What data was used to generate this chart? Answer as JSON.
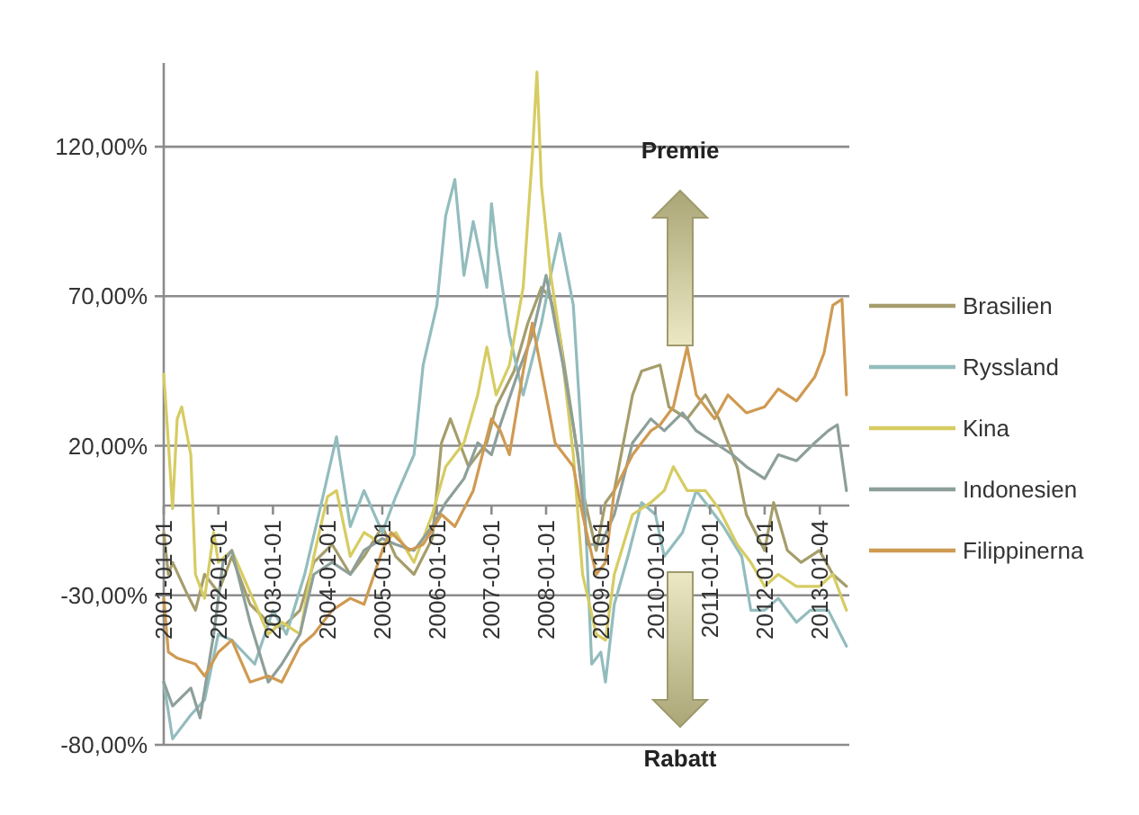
{
  "chart_data": {
    "type": "line",
    "annotations": [
      "Premie",
      "Rabatt"
    ],
    "xlim": [
      "2001-01-01",
      "2013-07-20"
    ],
    "xticks": [
      "2001-01-01",
      "2002-01-01",
      "2003-01-01",
      "2004-01-01",
      "2005-01-01",
      "2006-01-01",
      "2007-01-01",
      "2008-01-01",
      "2009-01-01",
      "2010-01-01",
      "2011-01-01",
      "2012-01-01",
      "2013-01-04"
    ],
    "ylim": [
      -80,
      148
    ],
    "yticks": [
      {
        "value": -80,
        "label": "-80,00%"
      },
      {
        "value": -30,
        "label": "-30,00%"
      },
      {
        "value": 20,
        "label": "20,00%"
      },
      {
        "value": 70,
        "label": "70,00%"
      },
      {
        "value": 120,
        "label": "120,00%"
      }
    ],
    "grid": "y",
    "legend": "right",
    "line_style": "solid",
    "series": [
      {
        "name": "Brasilien",
        "color": "#a59d6b",
        "x": [
          "2001-01",
          "2001-02",
          "2001-03",
          "2001-06",
          "2001-08",
          "2001-10",
          "2002-01",
          "2002-04",
          "2002-08",
          "2002-12",
          "2003-03",
          "2003-07",
          "2003-10",
          "2004-02",
          "2004-06",
          "2004-09",
          "2005-01",
          "2005-04",
          "2005-08",
          "2005-12",
          "2006-02",
          "2006-04",
          "2006-08",
          "2006-12",
          "2007-02",
          "2007-06",
          "2007-09",
          "2007-12",
          "2008-02",
          "2008-04",
          "2008-07",
          "2008-09",
          "2008-12",
          "2009-02",
          "2009-04",
          "2009-08",
          "2009-10",
          "2010-02",
          "2010-04",
          "2010-08",
          "2010-12",
          "2011-03",
          "2011-07",
          "2011-09",
          "2012-01",
          "2012-03",
          "2012-06",
          "2012-09",
          "2013-01",
          "2013-04",
          "2013-07"
        ],
        "values": [
          -9,
          -23,
          -19,
          -29,
          -35,
          -23,
          -29,
          -17,
          -33,
          -39,
          -41,
          -35,
          -19,
          -13,
          -23,
          -17,
          -7,
          -17,
          -23,
          -11,
          21,
          29,
          13,
          21,
          33,
          45,
          61,
          73,
          69,
          57,
          27,
          5,
          -15,
          1,
          5,
          37,
          45,
          47,
          33,
          29,
          37,
          29,
          13,
          -3,
          -15,
          1,
          -15,
          -19,
          -15,
          -23,
          -27
        ]
      },
      {
        "name": "Ryssland",
        "color": "#93bcbd",
        "x": [
          "2001-01",
          "2001-03",
          "2001-07",
          "2001-10",
          "2002-01",
          "2002-04",
          "2002-09",
          "2003-01",
          "2003-04",
          "2003-08",
          "2003-12",
          "2004-03",
          "2004-06",
          "2004-09",
          "2005-01",
          "2005-04",
          "2005-08",
          "2005-10",
          "2006-01",
          "2006-03",
          "2006-05",
          "2006-07",
          "2006-09",
          "2006-12",
          "2007-01",
          "2007-02",
          "2007-05",
          "2007-08",
          "2007-12",
          "2008-02",
          "2008-04",
          "2008-07",
          "2008-09",
          "2008-11",
          "2009-01",
          "2009-02",
          "2009-04",
          "2009-07",
          "2009-10",
          "2010-01",
          "2010-03",
          "2010-07",
          "2010-10",
          "2011-01",
          "2011-04",
          "2011-08",
          "2011-10",
          "2012-01",
          "2012-04",
          "2012-08",
          "2012-11",
          "2013-03",
          "2013-07"
        ],
        "values": [
          -59,
          -78,
          -70,
          -65,
          -43,
          -45,
          -53,
          -35,
          -43,
          -23,
          3,
          23,
          -7,
          5,
          -9,
          3,
          17,
          47,
          67,
          97,
          109,
          77,
          95,
          73,
          101,
          87,
          57,
          37,
          61,
          77,
          91,
          67,
          17,
          -53,
          -49,
          -59,
          -33,
          -17,
          1,
          -3,
          -17,
          -9,
          5,
          -1,
          -7,
          -17,
          -35,
          -35,
          -31,
          -39,
          -35,
          -35,
          -47
        ]
      },
      {
        "name": "Kina",
        "color": "#d6cc62",
        "x": [
          "2001-01",
          "2001-02",
          "2001-03",
          "2001-04",
          "2001-05",
          "2001-07",
          "2001-08",
          "2001-10",
          "2001-12",
          "2002-01",
          "2002-04",
          "2002-08",
          "2002-12",
          "2003-03",
          "2003-07",
          "2003-10",
          "2004-01",
          "2004-03",
          "2004-06",
          "2004-09",
          "2005-01",
          "2005-04",
          "2005-08",
          "2005-12",
          "2006-03",
          "2006-07",
          "2006-10",
          "2006-12",
          "2007-02",
          "2007-05",
          "2007-08",
          "2007-10",
          "2007-11",
          "2007-12",
          "2008-02",
          "2008-04",
          "2008-07",
          "2008-09",
          "2008-12",
          "2009-02",
          "2009-04",
          "2009-08",
          "2009-12",
          "2010-03",
          "2010-05",
          "2010-08",
          "2010-12",
          "2011-03",
          "2011-07",
          "2011-10",
          "2012-01",
          "2012-04",
          "2012-08",
          "2013-01",
          "2013-04",
          "2013-07"
        ],
        "values": [
          44,
          21,
          -1,
          29,
          33,
          17,
          -23,
          -31,
          -9,
          -19,
          -15,
          -29,
          -43,
          -39,
          -43,
          -17,
          3,
          5,
          -17,
          -9,
          -13,
          -9,
          -19,
          -3,
          13,
          21,
          37,
          53,
          37,
          47,
          73,
          117,
          145,
          107,
          77,
          57,
          17,
          -23,
          -43,
          -45,
          -23,
          -3,
          1,
          5,
          13,
          5,
          5,
          -1,
          -13,
          -19,
          -27,
          -23,
          -27,
          -27,
          -23,
          -35
        ]
      },
      {
        "name": "Indonesien",
        "color": "#8d9f9a",
        "x": [
          "2001-01",
          "2001-03",
          "2001-07",
          "2001-09",
          "2001-12",
          "2002-02",
          "2002-04",
          "2002-08",
          "2002-12",
          "2003-03",
          "2003-07",
          "2003-10",
          "2004-02",
          "2004-06",
          "2004-09",
          "2005-01",
          "2005-04",
          "2005-08",
          "2005-12",
          "2006-03",
          "2006-07",
          "2006-10",
          "2007-01",
          "2007-03",
          "2007-07",
          "2007-10",
          "2008-01",
          "2008-03",
          "2008-05",
          "2008-08",
          "2008-10",
          "2009-01",
          "2009-04",
          "2009-08",
          "2009-12",
          "2010-03",
          "2010-07",
          "2010-10",
          "2011-02",
          "2011-06",
          "2011-09",
          "2012-01",
          "2012-04",
          "2012-08",
          "2012-12",
          "2013-03",
          "2013-05",
          "2013-07"
        ],
        "values": [
          -59,
          -67,
          -61,
          -71,
          -43,
          -19,
          -15,
          -39,
          -59,
          -53,
          -43,
          -23,
          -19,
          -23,
          -15,
          -11,
          -13,
          -15,
          -7,
          1,
          9,
          21,
          17,
          27,
          45,
          57,
          77,
          61,
          45,
          17,
          -13,
          -13,
          -3,
          21,
          29,
          25,
          31,
          25,
          21,
          17,
          13,
          9,
          17,
          15,
          21,
          25,
          27,
          5
        ]
      },
      {
        "name": "Filippinerna",
        "color": "#cf9a52",
        "x": [
          "2001-01",
          "2001-02",
          "2001-04",
          "2001-08",
          "2001-10",
          "2002-01",
          "2002-04",
          "2002-08",
          "2002-12",
          "2003-03",
          "2003-07",
          "2003-10",
          "2004-02",
          "2004-06",
          "2004-09",
          "2005-01",
          "2005-03",
          "2005-07",
          "2005-10",
          "2006-02",
          "2006-05",
          "2006-09",
          "2007-01",
          "2007-03",
          "2007-05",
          "2007-08",
          "2007-10",
          "2008-01",
          "2008-03",
          "2008-07",
          "2008-09",
          "2008-12",
          "2009-02",
          "2009-04",
          "2009-08",
          "2009-12",
          "2010-02",
          "2010-05",
          "2010-08",
          "2010-10",
          "2011-02",
          "2011-05",
          "2011-09",
          "2012-01",
          "2012-04",
          "2012-08",
          "2012-12",
          "2013-02",
          "2013-04",
          "2013-06",
          "2013-07"
        ],
        "values": [
          -31,
          -49,
          -51,
          -53,
          -57,
          -49,
          -45,
          -59,
          -57,
          -59,
          -47,
          -43,
          -35,
          -31,
          -33,
          -15,
          -9,
          -15,
          -13,
          -3,
          -7,
          5,
          29,
          25,
          17,
          45,
          61,
          37,
          21,
          13,
          -3,
          -23,
          -19,
          5,
          17,
          25,
          27,
          33,
          53,
          37,
          29,
          37,
          31,
          33,
          39,
          35,
          43,
          51,
          67,
          69,
          37
        ]
      }
    ]
  }
}
